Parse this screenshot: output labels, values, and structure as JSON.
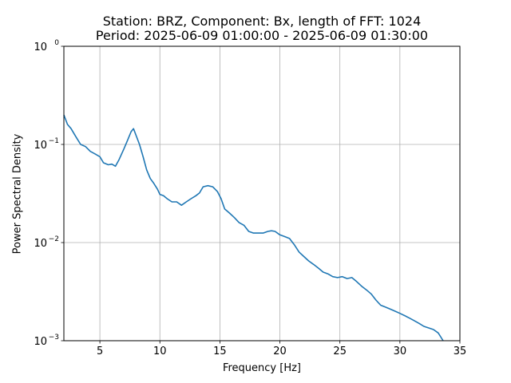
{
  "chart_data": {
    "type": "line",
    "title_line1": "Station: BRZ, Component: Bx, length of FFT: 1024",
    "title_line2": "Period: 2025-06-09 01:00:00 - 2025-06-09 01:30:00",
    "xlabel": "Frequency [Hz]",
    "ylabel": "Power Spectral Density",
    "xlim": [
      2,
      35
    ],
    "ylim": [
      0.001,
      1
    ],
    "yscale": "log",
    "grid": true,
    "x_ticks": [
      5,
      10,
      15,
      20,
      25,
      30,
      35
    ],
    "y_ticks": [
      {
        "value": 0.001,
        "base": "10",
        "exp": "−3"
      },
      {
        "value": 0.01,
        "base": "10",
        "exp": "−2"
      },
      {
        "value": 0.1,
        "base": "10",
        "exp": "−1"
      },
      {
        "value": 1,
        "base": "10",
        "exp": "0"
      }
    ],
    "series": [
      {
        "color": "#1f77b4",
        "x": [
          2.0,
          2.3,
          2.6,
          3.0,
          3.4,
          3.8,
          4.2,
          4.6,
          5.0,
          5.3,
          5.7,
          6.0,
          6.3,
          6.6,
          7.0,
          7.3,
          7.6,
          7.8,
          8.0,
          8.3,
          8.6,
          8.9,
          9.2,
          9.5,
          9.8,
          10.0,
          10.3,
          10.6,
          11.0,
          11.4,
          11.8,
          12.2,
          12.6,
          13.0,
          13.3,
          13.6,
          14.0,
          14.4,
          14.8,
          15.1,
          15.4,
          15.8,
          16.2,
          16.6,
          17.0,
          17.4,
          17.8,
          18.2,
          18.6,
          19.0,
          19.3,
          19.6,
          20.0,
          20.4,
          20.8,
          21.2,
          21.6,
          22.0,
          22.4,
          22.8,
          23.2,
          23.6,
          24.0,
          24.4,
          24.8,
          25.2,
          25.6,
          26.0,
          26.4,
          26.8,
          27.2,
          27.6,
          28.0,
          28.4,
          28.8,
          29.2,
          29.6,
          30.0,
          30.4,
          30.8,
          31.2,
          31.6,
          32.0,
          32.4,
          32.8,
          33.2,
          33.6
        ],
        "y": [
          0.2,
          0.16,
          0.145,
          0.12,
          0.1,
          0.095,
          0.085,
          0.08,
          0.075,
          0.065,
          0.062,
          0.063,
          0.06,
          0.07,
          0.09,
          0.11,
          0.135,
          0.145,
          0.125,
          0.1,
          0.075,
          0.055,
          0.045,
          0.04,
          0.035,
          0.031,
          0.03,
          0.028,
          0.026,
          0.026,
          0.024,
          0.026,
          0.028,
          0.03,
          0.032,
          0.037,
          0.038,
          0.037,
          0.033,
          0.028,
          0.022,
          0.02,
          0.018,
          0.016,
          0.015,
          0.013,
          0.0125,
          0.0125,
          0.0125,
          0.013,
          0.0132,
          0.013,
          0.012,
          0.0115,
          0.011,
          0.0095,
          0.008,
          0.0072,
          0.0065,
          0.006,
          0.0055,
          0.005,
          0.0048,
          0.0045,
          0.0044,
          0.0045,
          0.0043,
          0.0044,
          0.004,
          0.0036,
          0.0033,
          0.003,
          0.0026,
          0.0023,
          0.0022,
          0.0021,
          0.002,
          0.0019,
          0.0018,
          0.0017,
          0.0016,
          0.0015,
          0.0014,
          0.00135,
          0.0013,
          0.0012,
          0.001
        ]
      }
    ]
  }
}
